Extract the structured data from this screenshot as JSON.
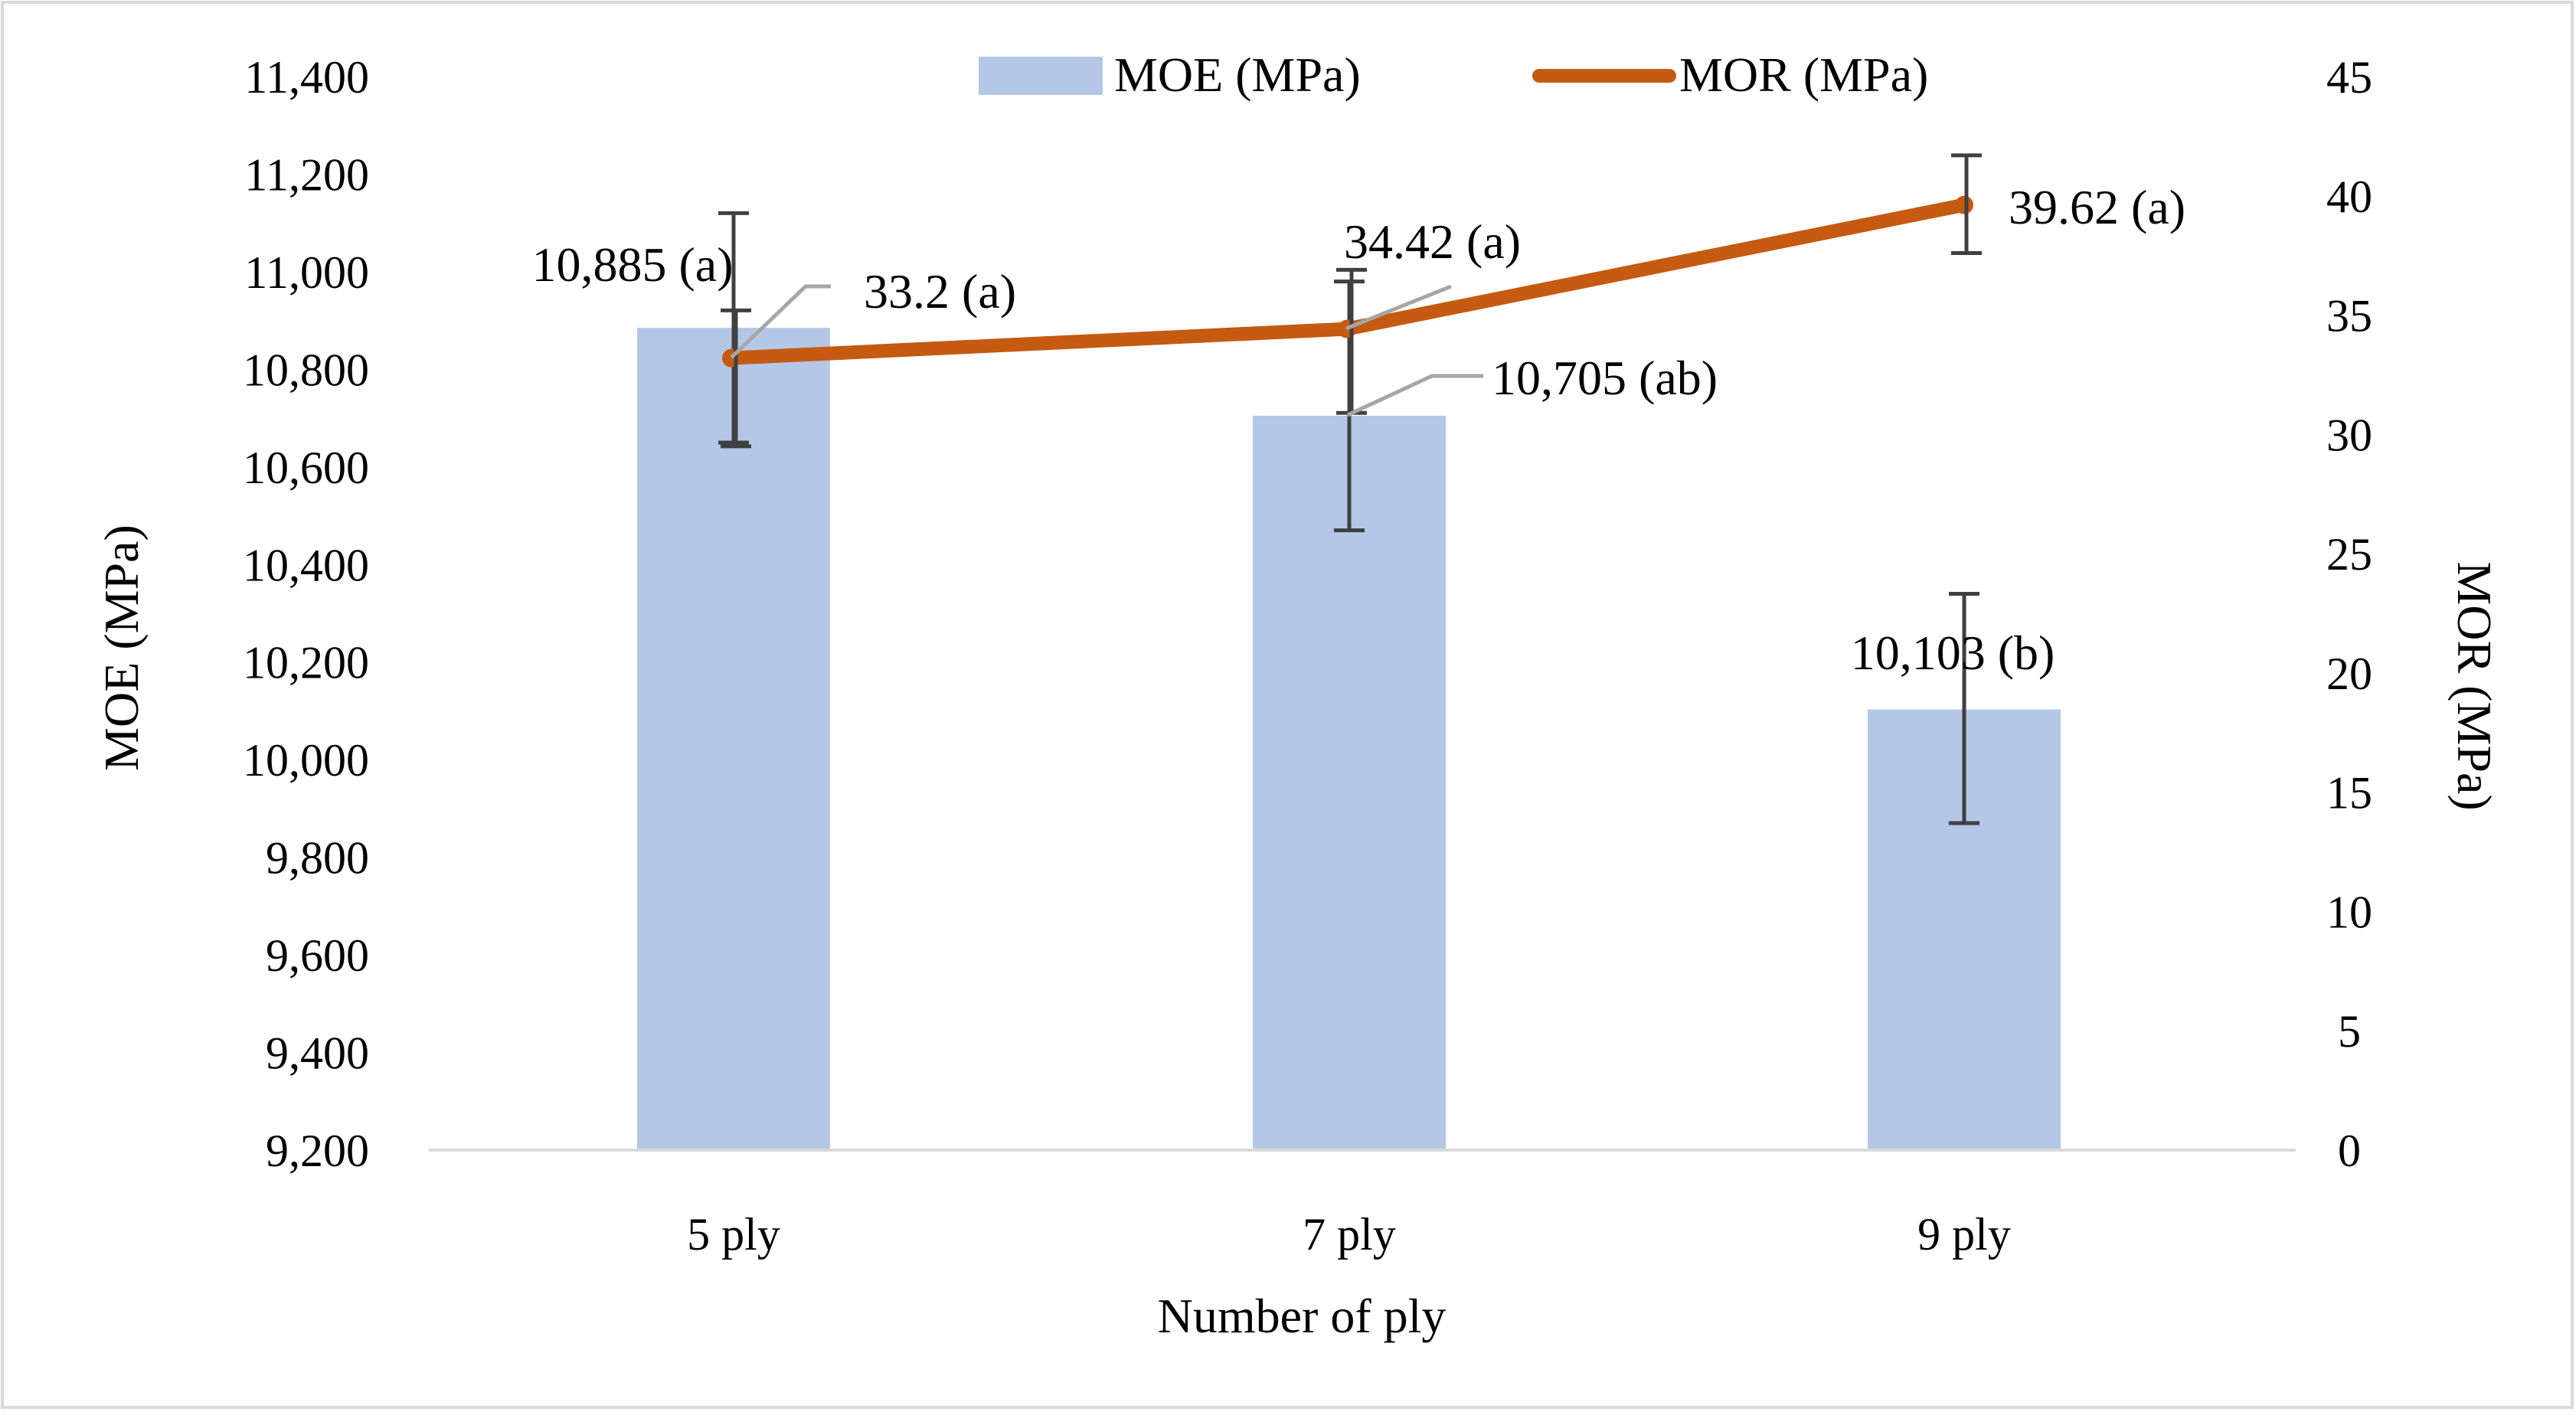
{
  "chart_data": {
    "type": "bar+line",
    "categories": [
      "5 ply",
      "7 ply",
      "9 ply"
    ],
    "xlabel": "Number of ply",
    "y_left": {
      "label": "MOE (MPa)",
      "ylim": [
        9200,
        11400
      ],
      "ticks": [
        9200,
        9400,
        9600,
        9800,
        10000,
        10200,
        10400,
        10600,
        10800,
        11000,
        11200,
        11400
      ],
      "tick_labels": [
        "9,200",
        "9,400",
        "9,600",
        "9,800",
        "10,000",
        "10,200",
        "10,400",
        "10,600",
        "10,800",
        "11,000",
        "11,200",
        "11,400"
      ]
    },
    "y_right": {
      "label": "MOR (MPa)",
      "ylim": [
        0,
        45
      ],
      "ticks": [
        0,
        5,
        10,
        15,
        20,
        25,
        30,
        35,
        40,
        45
      ],
      "tick_labels": [
        "0",
        "5",
        "10",
        "15",
        "20",
        "25",
        "30",
        "35",
        "40",
        "45"
      ]
    },
    "series": [
      {
        "name": "MOE (MPa)",
        "kind": "bar",
        "axis": "left",
        "color": "#b4c7e7",
        "values": [
          10885,
          10705,
          10103
        ],
        "error_low": [
          10650,
          10470,
          9870
        ],
        "error_high": [
          11120,
          10980,
          10340
        ],
        "labels": [
          "10,885 (a)",
          "10,705 (ab)",
          "10,103 (b)"
        ]
      },
      {
        "name": "MOR (MPa)",
        "kind": "line",
        "axis": "right",
        "color": "#c55a11",
        "values": [
          33.2,
          34.42,
          39.62
        ],
        "error_low": [
          29.5,
          30.9,
          37.6
        ],
        "error_high": [
          35.2,
          36.9,
          41.7
        ],
        "labels": [
          "33.2 (a)",
          "34.42 (a)",
          "39.62 (a)"
        ]
      }
    ],
    "legend": "top-center",
    "grid": false
  }
}
